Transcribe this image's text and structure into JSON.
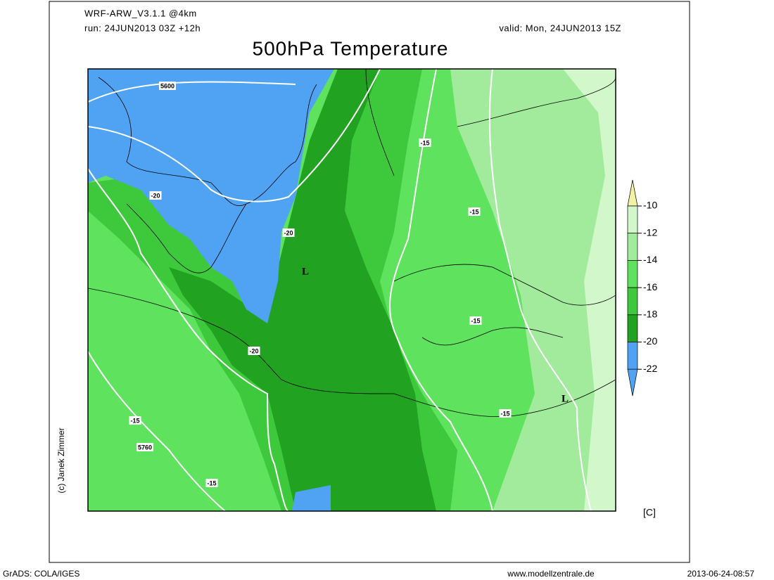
{
  "header": {
    "model": "WRF-ARW_V3.1.1 @4km",
    "run": "run: 24JUN2013 03Z +12h",
    "valid": "valid: Mon, 24JUN2013 15Z",
    "title": "500hPa Temperature"
  },
  "map": {
    "labels": [
      5600,
      -15,
      -20,
      -20,
      -15,
      "L",
      -15,
      -20,
      "L",
      -15,
      -15,
      5760,
      -15
    ]
  },
  "colorbar": {
    "levels": [
      -10,
      -12,
      -14,
      -16,
      -18,
      -20,
      -22
    ],
    "colors": [
      "#f2f2a4",
      "#d2f7cb",
      "#a3eb9c",
      "#5fe25d",
      "#3ec93d",
      "#21a321",
      "#4fa3f2",
      "#4fa3f2"
    ],
    "unit": "[C]"
  },
  "credit": "(c) Janek Zimmer",
  "footer": {
    "left": "GrADS: COLA/IGES",
    "center": "www.modellzentrale.de",
    "right": "2013-06-24-08:57"
  }
}
